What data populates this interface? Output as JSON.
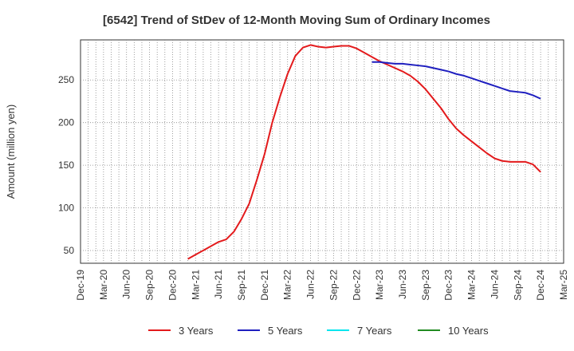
{
  "chart_data": {
    "type": "line",
    "title": "[6542]  Trend of StDev of 12-Month Moving Sum of Ordinary Incomes",
    "ylabel": "Amount (million yen)",
    "xlabel": "",
    "ylim": [
      35,
      297
    ],
    "yticks": [
      50,
      100,
      150,
      200,
      250
    ],
    "xlim": [
      "2019-12",
      "2025-03"
    ],
    "xticks": [
      "Dec-19",
      "Mar-20",
      "Jun-20",
      "Sep-20",
      "Dec-20",
      "Mar-21",
      "Jun-21",
      "Sep-21",
      "Dec-21",
      "Mar-22",
      "Jun-22",
      "Sep-22",
      "Dec-22",
      "Mar-23",
      "Jun-23",
      "Sep-23",
      "Dec-23",
      "Mar-24",
      "Jun-24",
      "Sep-24",
      "Dec-24",
      "Mar-25"
    ],
    "grid": true,
    "legend_position": "bottom",
    "series": [
      {
        "name": "3 Years",
        "color": "#e31a1c",
        "points": [
          [
            "2021-02",
            40
          ],
          [
            "2021-03",
            45
          ],
          [
            "2021-04",
            50
          ],
          [
            "2021-05",
            55
          ],
          [
            "2021-06",
            60
          ],
          [
            "2021-07",
            63
          ],
          [
            "2021-08",
            72
          ],
          [
            "2021-09",
            87
          ],
          [
            "2021-10",
            105
          ],
          [
            "2021-11",
            133
          ],
          [
            "2021-12",
            163
          ],
          [
            "2022-01",
            200
          ],
          [
            "2022-02",
            230
          ],
          [
            "2022-03",
            257
          ],
          [
            "2022-04",
            278
          ],
          [
            "2022-05",
            288
          ],
          [
            "2022-06",
            291
          ],
          [
            "2022-07",
            289
          ],
          [
            "2022-08",
            288
          ],
          [
            "2022-09",
            289
          ],
          [
            "2022-10",
            290
          ],
          [
            "2022-11",
            290
          ],
          [
            "2022-12",
            287
          ],
          [
            "2023-01",
            282
          ],
          [
            "2023-02",
            277
          ],
          [
            "2023-03",
            272
          ],
          [
            "2023-04",
            268
          ],
          [
            "2023-05",
            264
          ],
          [
            "2023-06",
            260
          ],
          [
            "2023-07",
            255
          ],
          [
            "2023-08",
            248
          ],
          [
            "2023-09",
            239
          ],
          [
            "2023-10",
            228
          ],
          [
            "2023-11",
            217
          ],
          [
            "2023-12",
            204
          ],
          [
            "2024-01",
            193
          ],
          [
            "2024-02",
            185
          ],
          [
            "2024-03",
            178
          ],
          [
            "2024-04",
            171
          ],
          [
            "2024-05",
            164
          ],
          [
            "2024-06",
            158
          ],
          [
            "2024-07",
            155
          ],
          [
            "2024-08",
            154
          ],
          [
            "2024-09",
            154
          ],
          [
            "2024-10",
            154
          ],
          [
            "2024-11",
            151
          ],
          [
            "2024-12",
            142
          ]
        ]
      },
      {
        "name": "5 Years",
        "color": "#1f1fbf",
        "points": [
          [
            "2023-02",
            271
          ],
          [
            "2023-03",
            271
          ],
          [
            "2023-04",
            270
          ],
          [
            "2023-05",
            269
          ],
          [
            "2023-06",
            269
          ],
          [
            "2023-07",
            268
          ],
          [
            "2023-08",
            267
          ],
          [
            "2023-09",
            266
          ],
          [
            "2023-10",
            264
          ],
          [
            "2023-11",
            262
          ],
          [
            "2023-12",
            260
          ],
          [
            "2024-01",
            257
          ],
          [
            "2024-02",
            255
          ],
          [
            "2024-03",
            252
          ],
          [
            "2024-04",
            249
          ],
          [
            "2024-05",
            246
          ],
          [
            "2024-06",
            243
          ],
          [
            "2024-07",
            240
          ],
          [
            "2024-08",
            237
          ],
          [
            "2024-09",
            236
          ],
          [
            "2024-10",
            235
          ],
          [
            "2024-11",
            232
          ],
          [
            "2024-12",
            228
          ]
        ]
      },
      {
        "name": "7 Years",
        "color": "#00e5ee",
        "points": []
      },
      {
        "name": "10 Years",
        "color": "#228b22",
        "points": []
      }
    ]
  }
}
